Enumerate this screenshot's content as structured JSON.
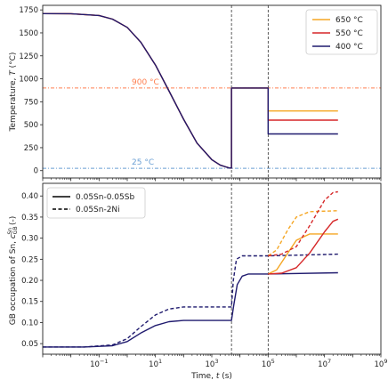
{
  "chart_data": [
    {
      "type": "line",
      "xscale": "log",
      "xlim": [
        0.001,
        1000000000
      ],
      "ylim": [
        -80,
        1800
      ],
      "ylabel": "Temperature, T (°C)",
      "yticks": [
        0,
        250,
        500,
        750,
        1000,
        1250,
        1500,
        1750
      ],
      "vlines": [
        5000,
        100000
      ],
      "hlines": [
        {
          "y": 900,
          "label": "900 °C",
          "color": "#ff7f50",
          "label_x": 0.5
        },
        {
          "y": 25,
          "label": "25 °C",
          "color": "#6a9fd4",
          "label_x": 0.5
        }
      ],
      "legend": "top-right",
      "series": [
        {
          "name": "650 °C",
          "color": "#f5a623",
          "points": [
            [
              0.001,
              1710
            ],
            [
              0.01,
              1709
            ],
            [
              0.1,
              1690
            ],
            [
              0.3,
              1650
            ],
            [
              1,
              1560
            ],
            [
              3,
              1400
            ],
            [
              10,
              1150
            ],
            [
              30,
              870
            ],
            [
              100,
              560
            ],
            [
              300,
              300
            ],
            [
              1000,
              120
            ],
            [
              2000,
              60
            ],
            [
              4000,
              30
            ],
            [
              5000,
              28
            ],
            [
              5000,
              900
            ],
            [
              100000,
              900
            ],
            [
              100000,
              650
            ],
            [
              30000000,
              650
            ]
          ]
        },
        {
          "name": "550 °C",
          "color": "#d62728",
          "points": [
            [
              0.001,
              1710
            ],
            [
              0.01,
              1709
            ],
            [
              0.1,
              1690
            ],
            [
              0.3,
              1650
            ],
            [
              1,
              1560
            ],
            [
              3,
              1400
            ],
            [
              10,
              1150
            ],
            [
              30,
              870
            ],
            [
              100,
              560
            ],
            [
              300,
              300
            ],
            [
              1000,
              120
            ],
            [
              2000,
              60
            ],
            [
              4000,
              30
            ],
            [
              5000,
              28
            ],
            [
              5000,
              900
            ],
            [
              100000,
              900
            ],
            [
              100000,
              550
            ],
            [
              30000000,
              550
            ]
          ]
        },
        {
          "name": "400 °C",
          "color": "#1f1a6e",
          "points": [
            [
              0.001,
              1710
            ],
            [
              0.01,
              1709
            ],
            [
              0.1,
              1690
            ],
            [
              0.3,
              1650
            ],
            [
              1,
              1560
            ],
            [
              3,
              1400
            ],
            [
              10,
              1150
            ],
            [
              30,
              870
            ],
            [
              100,
              560
            ],
            [
              300,
              300
            ],
            [
              1000,
              120
            ],
            [
              2000,
              60
            ],
            [
              4000,
              30
            ],
            [
              5000,
              28
            ],
            [
              5000,
              900
            ],
            [
              100000,
              900
            ],
            [
              100000,
              400
            ],
            [
              30000000,
              400
            ]
          ]
        }
      ]
    },
    {
      "type": "line",
      "xscale": "log",
      "xlim": [
        0.001,
        1000000000
      ],
      "ylim": [
        0.025,
        0.43
      ],
      "xlabel": "Time, t (s)",
      "ylabel": "GB occupation of Sn, c_GB^Sn (-)",
      "yticks": [
        0.05,
        0.1,
        0.15,
        0.2,
        0.25,
        0.3,
        0.35,
        0.4
      ],
      "xticks": [
        0.1,
        10,
        1000,
        100000,
        10000000,
        1000000000
      ],
      "xticklabels": [
        "10−1",
        "101",
        "103",
        "105",
        "107",
        "109"
      ],
      "vlines": [
        5000,
        100000
      ],
      "legend": "top-left",
      "legend_entries": [
        {
          "name": "0.05Sn-0.05Sb",
          "style": "solid"
        },
        {
          "name": "0.05Sn-2Ni",
          "style": "dashed"
        }
      ],
      "series": [
        {
          "group": "0.05Sn-0.05Sb",
          "style": "solid",
          "color": "#1f1a6e",
          "points": [
            [
              0.001,
              0.042
            ],
            [
              0.03,
              0.042
            ],
            [
              0.3,
              0.045
            ],
            [
              1,
              0.055
            ],
            [
              3,
              0.075
            ],
            [
              10,
              0.093
            ],
            [
              30,
              0.102
            ],
            [
              100,
              0.105
            ],
            [
              5000,
              0.105
            ],
            [
              6000,
              0.14
            ],
            [
              8000,
              0.19
            ],
            [
              12000,
              0.21
            ],
            [
              20000,
              0.215
            ],
            [
              100000,
              0.215
            ],
            [
              30000000,
              0.218
            ]
          ]
        },
        {
          "group": "0.05Sn-2Ni",
          "style": "dashed",
          "color": "#1f1a6e",
          "points": [
            [
              0.001,
              0.042
            ],
            [
              0.03,
              0.042
            ],
            [
              0.3,
              0.047
            ],
            [
              1,
              0.062
            ],
            [
              3,
              0.09
            ],
            [
              10,
              0.118
            ],
            [
              30,
              0.132
            ],
            [
              100,
              0.137
            ],
            [
              5000,
              0.137
            ],
            [
              5800,
              0.2
            ],
            [
              7500,
              0.25
            ],
            [
              12000,
              0.258
            ],
            [
              100000,
              0.258
            ],
            [
              30000000,
              0.262
            ]
          ]
        },
        {
          "group": "0.05Sn-0.05Sb",
          "style": "solid",
          "color": "#f5a623",
          "points": [
            [
              100000,
              0.215
            ],
            [
              200000,
              0.225
            ],
            [
              500000,
              0.265
            ],
            [
              1000000,
              0.295
            ],
            [
              3000000,
              0.31
            ],
            [
              30000000,
              0.31
            ]
          ]
        },
        {
          "group": "0.05Sn-2Ni",
          "style": "dashed",
          "color": "#f5a623",
          "points": [
            [
              100000,
              0.258
            ],
            [
              200000,
              0.272
            ],
            [
              500000,
              0.32
            ],
            [
              1000000,
              0.35
            ],
            [
              3000000,
              0.363
            ],
            [
              30000000,
              0.365
            ]
          ]
        },
        {
          "group": "0.05Sn-0.05Sb",
          "style": "solid",
          "color": "#d62728",
          "points": [
            [
              100000,
              0.215
            ],
            [
              300000,
              0.217
            ],
            [
              1000000,
              0.23
            ],
            [
              3000000,
              0.265
            ],
            [
              10000000,
              0.315
            ],
            [
              20000000,
              0.34
            ],
            [
              30000000,
              0.345
            ]
          ]
        },
        {
          "group": "0.05Sn-2Ni",
          "style": "dashed",
          "color": "#d62728",
          "points": [
            [
              100000,
              0.258
            ],
            [
              300000,
              0.262
            ],
            [
              1000000,
              0.28
            ],
            [
              3000000,
              0.33
            ],
            [
              10000000,
              0.39
            ],
            [
              20000000,
              0.408
            ],
            [
              30000000,
              0.41
            ]
          ]
        }
      ]
    }
  ]
}
